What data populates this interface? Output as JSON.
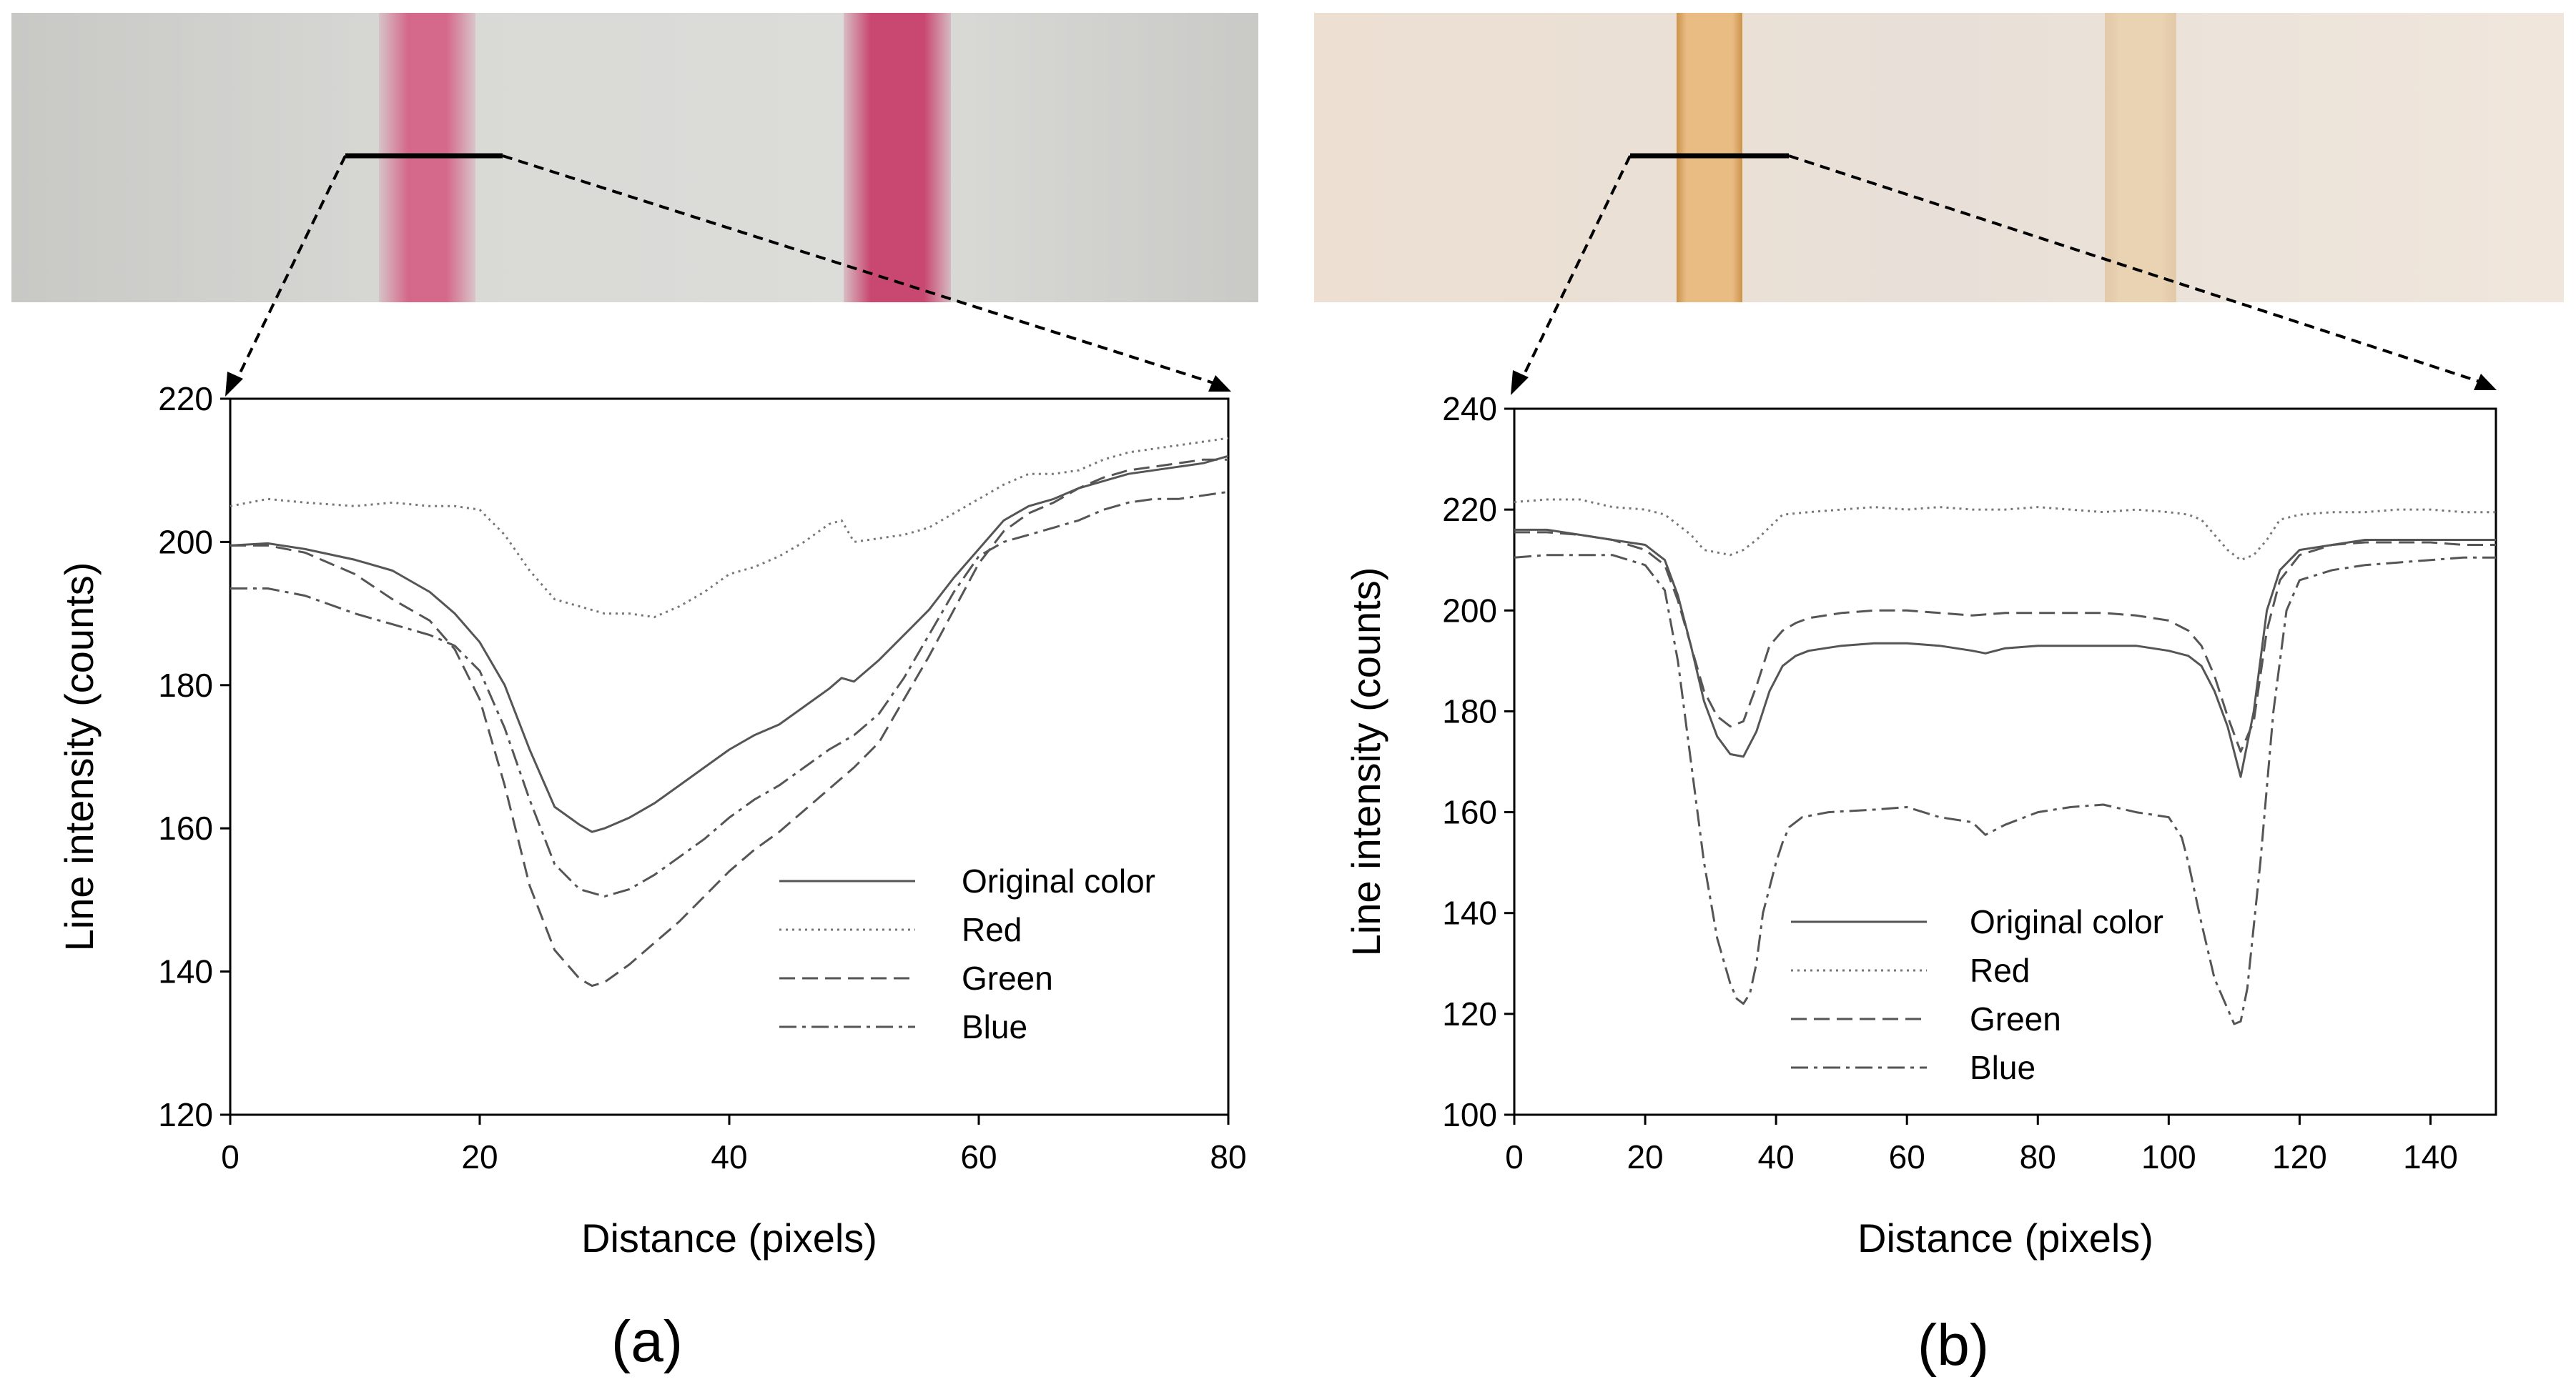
{
  "figure": {
    "panel_labels": [
      "(a)",
      "(b)"
    ],
    "strip_a_colors": {
      "background": "#cfcfcb",
      "band": "#d4557e"
    },
    "strip_b_colors": {
      "background": "#efe4d8",
      "band_left": "#e3aa68",
      "band_right": "#e6cba3"
    }
  },
  "chart_data": [
    {
      "type": "line",
      "panel": "(a)",
      "xlabel": "Distance (pixels)",
      "ylabel": "Line intensity (counts)",
      "xlim": [
        0,
        80
      ],
      "ylim": [
        120,
        220
      ],
      "xticks": [
        0,
        20,
        40,
        60,
        80
      ],
      "yticks": [
        120,
        140,
        160,
        180,
        200,
        220
      ],
      "legend_position": "lower-right",
      "series": [
        {
          "name": "Original color",
          "style": "solid",
          "x": [
            0,
            3,
            6,
            10,
            13,
            16,
            18,
            20,
            22,
            24,
            26,
            28,
            29,
            30,
            32,
            34,
            36,
            38,
            40,
            42,
            44,
            46,
            48,
            49,
            50,
            52,
            54,
            56,
            58,
            60,
            62,
            64,
            66,
            68,
            70,
            72,
            74,
            76,
            78,
            80
          ],
          "y": [
            199.5,
            199.8,
            199,
            197.5,
            196,
            193,
            190,
            186,
            180,
            171,
            163,
            160.5,
            159.5,
            160,
            161.5,
            163.5,
            166,
            168.5,
            171,
            173,
            174.5,
            177,
            179.5,
            181,
            180.5,
            183.5,
            187,
            190.5,
            195,
            199,
            203,
            205,
            206,
            207.5,
            208.5,
            209.5,
            210,
            210.5,
            211,
            212
          ]
        },
        {
          "name": "Red",
          "style": "dotted",
          "x": [
            0,
            3,
            6,
            10,
            13,
            16,
            18,
            20,
            22,
            24,
            26,
            28,
            30,
            32,
            34,
            36,
            38,
            40,
            42,
            44,
            46,
            48,
            49,
            50,
            52,
            54,
            56,
            58,
            60,
            62,
            64,
            66,
            68,
            70,
            72,
            74,
            76,
            78,
            80
          ],
          "y": [
            205,
            206,
            205.5,
            205,
            205.5,
            205,
            205,
            204.5,
            201,
            196,
            192,
            191,
            190,
            190,
            189.5,
            191,
            193,
            195.5,
            196.5,
            198,
            200,
            202.5,
            203,
            200,
            200.5,
            201,
            202,
            204,
            206,
            208,
            209.5,
            209.5,
            210,
            211.5,
            212.5,
            213,
            213.5,
            214,
            214.5
          ]
        },
        {
          "name": "Green",
          "style": "dashed",
          "x": [
            0,
            3,
            6,
            10,
            13,
            16,
            18,
            20,
            22,
            24,
            26,
            28,
            29,
            30,
            32,
            34,
            36,
            38,
            40,
            42,
            44,
            46,
            48,
            50,
            52,
            54,
            56,
            58,
            60,
            62,
            64,
            66,
            68,
            70,
            72,
            74,
            76,
            78,
            80
          ],
          "y": [
            199.5,
            199.5,
            198.5,
            195.5,
            192,
            189,
            185,
            178,
            166,
            152,
            143,
            139,
            138,
            138.5,
            141,
            144,
            147,
            150.5,
            154,
            157,
            159.5,
            162.5,
            165.5,
            168.5,
            172,
            178,
            184,
            190.5,
            197,
            201.5,
            204,
            205.5,
            207.5,
            209,
            210,
            210.5,
            211,
            211.5,
            211.5
          ]
        },
        {
          "name": "Blue",
          "style": "dashdot",
          "x": [
            0,
            3,
            6,
            10,
            13,
            16,
            18,
            20,
            22,
            24,
            26,
            28,
            30,
            32,
            34,
            36,
            38,
            40,
            42,
            44,
            46,
            48,
            50,
            52,
            54,
            56,
            58,
            60,
            62,
            64,
            66,
            68,
            70,
            72,
            74,
            76,
            78,
            80
          ],
          "y": [
            193.5,
            193.5,
            192.5,
            190,
            188.5,
            187,
            185.5,
            182,
            174,
            164,
            155,
            151.5,
            150.5,
            151.5,
            153.5,
            156,
            158.5,
            161.5,
            164,
            166,
            168.5,
            171,
            173,
            176,
            181,
            187,
            193,
            198,
            200,
            201,
            202,
            203,
            204.5,
            205.5,
            206,
            206,
            206.5,
            207
          ]
        }
      ]
    },
    {
      "type": "line",
      "panel": "(b)",
      "xlabel": "Distance (pixels)",
      "ylabel": "Line intensity (counts)",
      "xlim": [
        0,
        150
      ],
      "ylim": [
        100,
        240
      ],
      "xticks": [
        0,
        20,
        40,
        60,
        80,
        100,
        120,
        140
      ],
      "yticks": [
        100,
        120,
        140,
        160,
        180,
        200,
        220,
        240
      ],
      "legend_position": "lower-left",
      "series": [
        {
          "name": "Original color",
          "style": "solid",
          "x": [
            0,
            5,
            10,
            15,
            20,
            23,
            25,
            27,
            29,
            31,
            33,
            35,
            37,
            39,
            41,
            43,
            45,
            50,
            55,
            60,
            65,
            70,
            72,
            75,
            80,
            85,
            90,
            95,
            100,
            103,
            105,
            107,
            109,
            111,
            113,
            115,
            117,
            120,
            125,
            130,
            135,
            140,
            145,
            150
          ],
          "y": [
            216,
            216,
            215,
            214,
            213,
            210,
            203,
            193,
            182,
            175,
            171.5,
            171,
            176,
            184,
            189,
            191,
            192,
            193,
            193.5,
            193.5,
            193,
            192,
            191.5,
            192.5,
            193,
            193,
            193,
            193,
            192,
            191,
            189,
            184,
            177,
            167,
            180,
            200,
            208,
            212,
            213,
            214,
            214,
            214,
            214,
            214
          ]
        },
        {
          "name": "Red",
          "style": "dotted",
          "x": [
            0,
            5,
            10,
            15,
            20,
            23,
            25,
            27,
            29,
            31,
            33,
            35,
            37,
            39,
            41,
            45,
            50,
            55,
            60,
            65,
            70,
            75,
            80,
            85,
            90,
            95,
            100,
            103,
            105,
            107,
            109,
            111,
            113,
            115,
            117,
            120,
            125,
            130,
            135,
            140,
            145,
            150
          ],
          "y": [
            221.5,
            222,
            222,
            220.5,
            220,
            219,
            217,
            215,
            212,
            211.5,
            211,
            212,
            214,
            216.5,
            219,
            219.5,
            220,
            220.5,
            220,
            220.5,
            220,
            220,
            220.5,
            220,
            219.5,
            220,
            219.5,
            219,
            218,
            215,
            212,
            210,
            211,
            214,
            218,
            219,
            219.5,
            219.5,
            220,
            220,
            219.5,
            219.5
          ]
        },
        {
          "name": "Green",
          "style": "dashed",
          "x": [
            0,
            5,
            10,
            15,
            20,
            23,
            25,
            27,
            29,
            31,
            33,
            35,
            37,
            39,
            41,
            43,
            45,
            50,
            55,
            60,
            65,
            70,
            75,
            80,
            85,
            90,
            95,
            100,
            103,
            105,
            107,
            109,
            111,
            113,
            115,
            117,
            120,
            125,
            130,
            135,
            140,
            145,
            150
          ],
          "y": [
            215.5,
            215.5,
            215,
            214,
            212,
            209,
            202,
            193,
            184,
            179,
            177,
            178,
            185,
            193,
            196,
            197.5,
            198.5,
            199.5,
            200,
            200,
            199.5,
            199,
            199.5,
            199.5,
            199.5,
            199.5,
            199,
            198,
            196,
            193,
            187,
            179,
            172,
            178,
            196,
            206,
            211,
            213,
            213.5,
            213.5,
            213.5,
            213,
            213
          ]
        },
        {
          "name": "Blue",
          "style": "dashdot",
          "x": [
            0,
            5,
            10,
            15,
            20,
            23,
            25,
            27,
            29,
            31,
            33,
            34,
            35,
            36,
            37,
            38,
            40,
            41,
            42,
            44,
            48,
            55,
            60,
            65,
            70,
            72,
            75,
            80,
            85,
            90,
            95,
            100,
            102,
            103,
            105,
            107,
            109,
            110,
            111,
            112,
            114,
            116,
            118,
            120,
            125,
            130,
            135,
            140,
            145,
            150
          ],
          "y": [
            210.5,
            211,
            211,
            211,
            209,
            204,
            190,
            170,
            150,
            135,
            126,
            123,
            122,
            124,
            130,
            140,
            150,
            154,
            157,
            159,
            160,
            160.5,
            161,
            159,
            158,
            155.5,
            157.5,
            160,
            161,
            161.5,
            160,
            159,
            155,
            150,
            138,
            127,
            121,
            118,
            118.5,
            125,
            150,
            180,
            200,
            206,
            208,
            209,
            209.5,
            210,
            210.5,
            210.5
          ]
        }
      ]
    }
  ]
}
